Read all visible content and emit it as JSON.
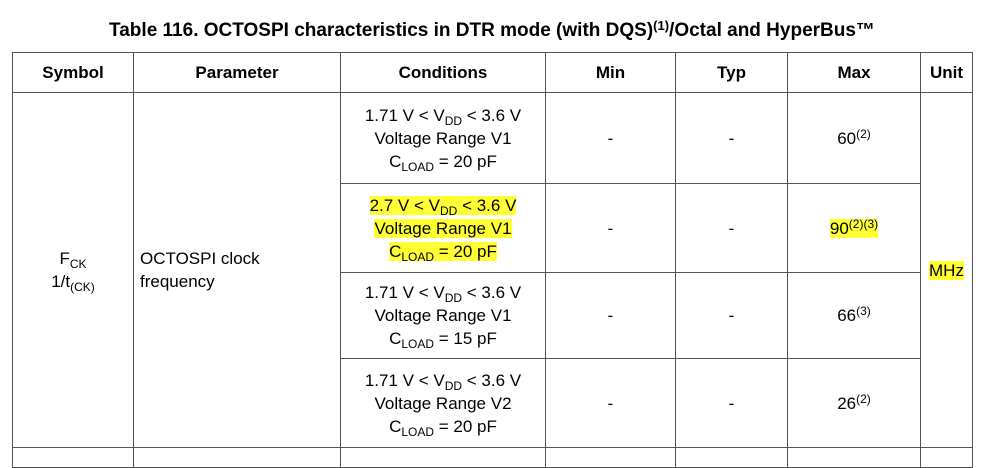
{
  "title": {
    "text": "Table 116. OCTOSPI characteristics in DTR mode (with DQS)",
    "sup": "(1)",
    "rest": "/Octal and HyperBus™"
  },
  "table": {
    "headers": [
      "Symbol",
      "Parameter",
      "Conditions",
      "Min",
      "Typ",
      "Max",
      "Unit"
    ],
    "symbol": {
      "main": "F",
      "main_sub": "CK",
      "alt": "1/t",
      "alt_sub": "(CK)"
    },
    "parameter": [
      "OCTOSPI clock",
      "frequency"
    ],
    "unit": "MHz",
    "rows": [
      {
        "conditions": [
          {
            "pre": "1.71 V < V",
            "sub": "DD",
            "post": " < 3.6 V"
          },
          "Voltage Range V1",
          {
            "pre": "C",
            "sub": "LOAD",
            "post": " = 20 pF"
          }
        ],
        "min": "-",
        "typ": "-",
        "max": "60",
        "max_notes": "(2)"
      },
      {
        "conditions": [
          {
            "pre": "2.7 V < V",
            "sub": "DD",
            "post": " < 3.6 V"
          },
          "Voltage Range V1",
          {
            "pre": "C",
            "sub": "LOAD",
            "post": " = 20 pF"
          }
        ],
        "min": "-",
        "typ": "-",
        "max": "90",
        "max_notes": "(2)(3)"
      },
      {
        "conditions": [
          {
            "pre": "1.71 V < V",
            "sub": "DD",
            "post": " < 3.6 V"
          },
          "Voltage Range V1",
          {
            "pre": "C",
            "sub": "LOAD",
            "post": " = 15 pF"
          }
        ],
        "min": "-",
        "typ": "-",
        "max": "66",
        "max_notes": "(3)"
      },
      {
        "conditions": [
          {
            "pre": "1.71 V < V",
            "sub": "DD",
            "post": " < 3.6 V"
          },
          "Voltage Range V2",
          {
            "pre": "C",
            "sub": "LOAD",
            "post": " = 20 pF"
          }
        ],
        "min": "-",
        "typ": "-",
        "max": "26",
        "max_notes": "(2)"
      }
    ]
  }
}
